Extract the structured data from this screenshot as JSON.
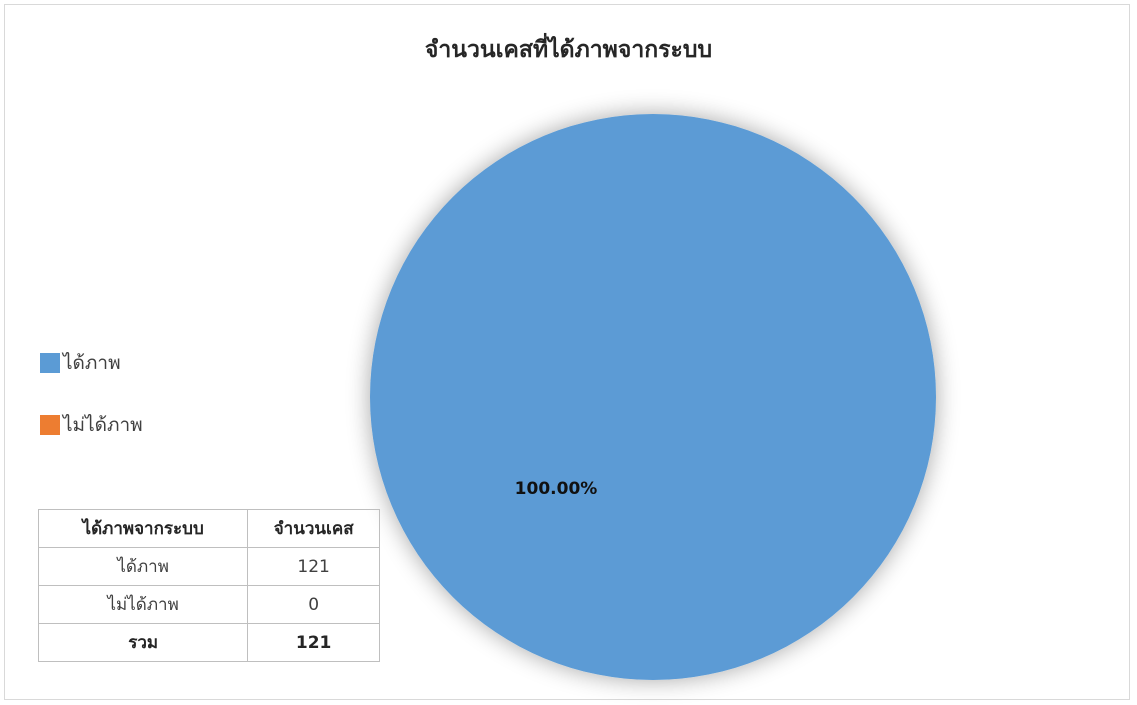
{
  "chart_data": {
    "type": "pie",
    "title": "จำนวนเคสที่ได้ภาพจากระบบ",
    "categories": [
      "ได้ภาพ",
      "ไม่ได้ภาพ"
    ],
    "values": [
      121,
      0
    ],
    "colors": [
      "#5b9bd5",
      "#ed7d31"
    ],
    "data_labels": [
      "100.00%"
    ],
    "legend_position": "left"
  },
  "table": {
    "headers": [
      "ได้ภาพจากระบบ",
      "จำนวนเคส"
    ],
    "rows": [
      [
        "ได้ภาพ",
        "121"
      ],
      [
        "ไม่ได้ภาพ",
        "0"
      ]
    ],
    "total": [
      "รวม",
      "121"
    ]
  }
}
